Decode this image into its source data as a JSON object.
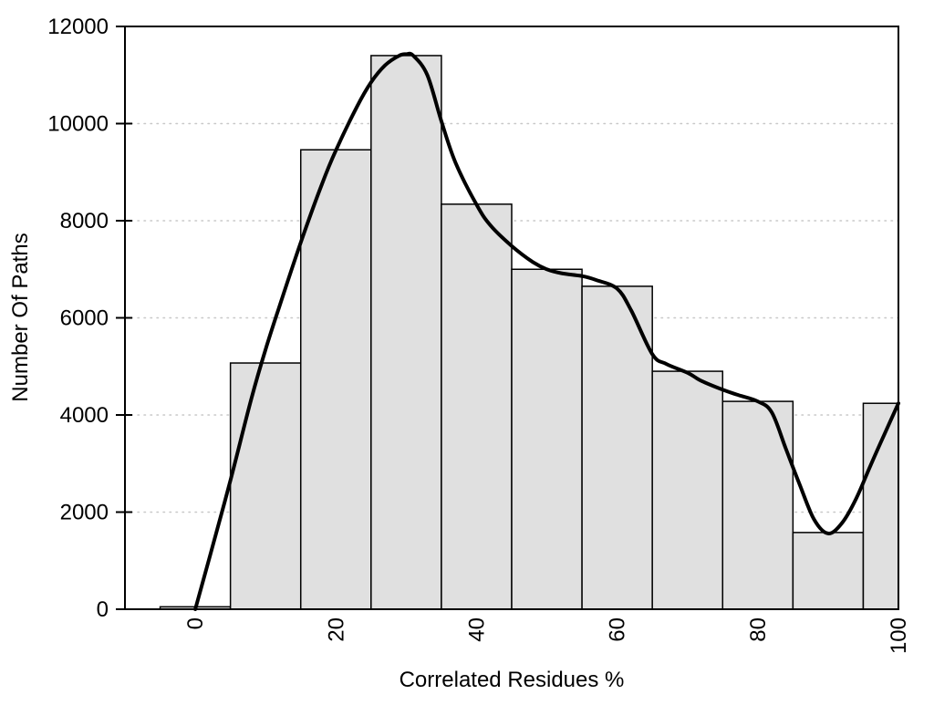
{
  "figure": {
    "background": "#ffffff",
    "bar_fill": "#e0e0e0",
    "bar_stroke": "#000000",
    "curve_color": "#000000",
    "grid_color": "#c8c8c8",
    "axis_color": "#000000",
    "text_color": "#000000"
  },
  "chart_data": {
    "type": "bar",
    "subtype": "histogram-with-smooth-fit-curve",
    "title": "",
    "xlabel": "Correlated Residues %",
    "ylabel": "Number Of Paths",
    "xlim": [
      -10,
      100
    ],
    "ylim": [
      0,
      12000
    ],
    "x_ticks": [
      0,
      20,
      40,
      60,
      80,
      100
    ],
    "y_ticks": [
      0,
      2000,
      4000,
      6000,
      8000,
      10000,
      12000
    ],
    "x_tick_labels": [
      "0",
      "20",
      "40",
      "60",
      "80",
      "100"
    ],
    "y_tick_labels": [
      "0",
      "2000",
      "4000",
      "6000",
      "8000",
      "10000",
      "12000"
    ],
    "x_tick_label_rotation": -90,
    "grid": "horizontal dotted lines at y ticks 2000-10000, drawn behind bars",
    "legend": "none",
    "bins": [
      {
        "x0": -5,
        "x1": 5,
        "count": 50
      },
      {
        "x0": 5,
        "x1": 15,
        "count": 5070
      },
      {
        "x0": 15,
        "x1": 25,
        "count": 9460
      },
      {
        "x0": 25,
        "x1": 35,
        "count": 11400
      },
      {
        "x0": 35,
        "x1": 45,
        "count": 8340
      },
      {
        "x0": 45,
        "x1": 55,
        "count": 7000
      },
      {
        "x0": 55,
        "x1": 65,
        "count": 6650
      },
      {
        "x0": 65,
        "x1": 75,
        "count": 4900
      },
      {
        "x0": 75,
        "x1": 85,
        "count": 4280
      },
      {
        "x0": 85,
        "x1": 95,
        "count": 1580
      },
      {
        "x0": 95,
        "x1": 105,
        "count": 4240
      }
    ],
    "curve": {
      "name": "smooth-fit",
      "points": [
        [
          0,
          0
        ],
        [
          2,
          1050
        ],
        [
          5,
          2650
        ],
        [
          8,
          4350
        ],
        [
          10,
          5350
        ],
        [
          12,
          6250
        ],
        [
          15,
          7550
        ],
        [
          18,
          8750
        ],
        [
          20,
          9450
        ],
        [
          23,
          10350
        ],
        [
          25,
          10850
        ],
        [
          27,
          11200
        ],
        [
          29,
          11400
        ],
        [
          30,
          11430
        ],
        [
          31,
          11400
        ],
        [
          33,
          11000
        ],
        [
          35,
          10050
        ],
        [
          37,
          9200
        ],
        [
          40,
          8330
        ],
        [
          42,
          7900
        ],
        [
          45,
          7480
        ],
        [
          48,
          7150
        ],
        [
          50,
          7000
        ],
        [
          52,
          6920
        ],
        [
          55,
          6860
        ],
        [
          57,
          6780
        ],
        [
          60,
          6600
        ],
        [
          62,
          6150
        ],
        [
          65,
          5250
        ],
        [
          67,
          5050
        ],
        [
          70,
          4870
        ],
        [
          72,
          4700
        ],
        [
          75,
          4520
        ],
        [
          77,
          4420
        ],
        [
          80,
          4280
        ],
        [
          82,
          4050
        ],
        [
          84,
          3300
        ],
        [
          86,
          2550
        ],
        [
          88,
          1850
        ],
        [
          90,
          1560
        ],
        [
          92,
          1780
        ],
        [
          94,
          2280
        ],
        [
          96,
          2950
        ],
        [
          98,
          3600
        ],
        [
          100,
          4240
        ]
      ]
    }
  }
}
